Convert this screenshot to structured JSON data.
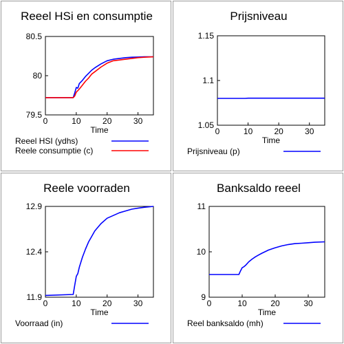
{
  "chart_data": [
    {
      "type": "line",
      "title": "Reeel HSi en consumptie",
      "xlabel": "Time",
      "ylabel": "",
      "xlim": [
        0,
        35
      ],
      "ylim": [
        79.5,
        80.5
      ],
      "xticks": [
        "0",
        "10",
        "20",
        "30"
      ],
      "xtick_values": [
        0,
        10,
        20,
        30
      ],
      "yticks": [
        "79.5",
        "80",
        "80.5"
      ],
      "ytick_values": [
        79.5,
        80,
        80.5
      ],
      "grid": false,
      "legend_position": "bottom",
      "series": [
        {
          "name": "Reeel HSI (ydhs)",
          "color": "#0000ff",
          "x": [
            0,
            9,
            9.5,
            10,
            10.5,
            11,
            12,
            13,
            14,
            15,
            16,
            18,
            20,
            22,
            24,
            26,
            28,
            30,
            32,
            35
          ],
          "y": [
            79.72,
            79.72,
            79.78,
            79.85,
            79.84,
            79.9,
            79.94,
            79.99,
            80.03,
            80.07,
            80.1,
            80.15,
            80.19,
            80.21,
            80.22,
            80.23,
            80.235,
            80.238,
            80.24,
            80.24
          ]
        },
        {
          "name": "Reele consumptie (c)",
          "color": "#ff0000",
          "x": [
            0,
            9,
            9.5,
            10,
            10.5,
            11,
            12,
            13,
            14,
            15,
            16,
            18,
            20,
            22,
            24,
            26,
            28,
            30,
            32,
            35
          ],
          "y": [
            79.72,
            79.72,
            79.74,
            79.79,
            79.81,
            79.83,
            79.88,
            79.93,
            79.97,
            80.02,
            80.05,
            80.11,
            80.16,
            80.19,
            80.2,
            80.21,
            80.22,
            80.23,
            80.235,
            80.24
          ]
        }
      ]
    },
    {
      "type": "line",
      "title": "Prijsniveau",
      "xlabel": "Time",
      "ylabel": "",
      "xlim": [
        0,
        35
      ],
      "ylim": [
        1.05,
        1.15
      ],
      "xticks": [
        "0",
        "10",
        "20",
        "30"
      ],
      "xtick_values": [
        0,
        10,
        20,
        30
      ],
      "yticks": [
        "1.05",
        "1.1",
        "1.15"
      ],
      "ytick_values": [
        1.05,
        1.1,
        1.15
      ],
      "grid": false,
      "legend_position": "bottom",
      "series": [
        {
          "name": "Prijsniveau (p)",
          "color": "#0000ff",
          "x": [
            0,
            9,
            10,
            35
          ],
          "y": [
            1.08,
            1.08,
            1.0802,
            1.0802
          ]
        }
      ]
    },
    {
      "type": "line",
      "title": "Reele voorraden",
      "xlabel": "Time",
      "ylabel": "",
      "xlim": [
        0,
        35
      ],
      "ylim": [
        11.9,
        12.9
      ],
      "xticks": [
        "0",
        "10",
        "20",
        "30"
      ],
      "xtick_values": [
        0,
        10,
        20,
        30
      ],
      "yticks": [
        "11.9",
        "12.4",
        "12.9"
      ],
      "ytick_values": [
        11.9,
        12.4,
        12.9
      ],
      "grid": false,
      "legend_position": "bottom",
      "series": [
        {
          "name": "Voorraad (in)",
          "color": "#0000ff",
          "x": [
            0,
            9,
            9.5,
            10,
            10.5,
            11,
            12,
            13,
            14,
            15,
            16,
            18,
            20,
            22,
            24,
            26,
            28,
            30,
            32,
            35
          ],
          "y": [
            11.92,
            11.93,
            12.03,
            12.13,
            12.16,
            12.23,
            12.34,
            12.43,
            12.51,
            12.57,
            12.63,
            12.71,
            12.77,
            12.8,
            12.83,
            12.85,
            12.87,
            12.88,
            12.89,
            12.9
          ]
        }
      ]
    },
    {
      "type": "line",
      "title": "Banksaldo reeel",
      "xlabel": "Time",
      "ylabel": "",
      "xlim": [
        0,
        35
      ],
      "ylim": [
        9,
        11
      ],
      "xticks": [
        "0",
        "10",
        "20",
        "30"
      ],
      "xtick_values": [
        0,
        10,
        20,
        30
      ],
      "yticks": [
        "9",
        "10",
        "11"
      ],
      "ytick_values": [
        9,
        10,
        11
      ],
      "grid": false,
      "legend_position": "bottom",
      "series": [
        {
          "name": "Reel banksaldo (mh)",
          "color": "#0000ff",
          "x": [
            0,
            9,
            9.5,
            10,
            10.5,
            11,
            12,
            13,
            14,
            15,
            16,
            18,
            20,
            22,
            24,
            26,
            28,
            30,
            32,
            35
          ],
          "y": [
            9.5,
            9.5,
            9.58,
            9.65,
            9.67,
            9.7,
            9.78,
            9.84,
            9.89,
            9.93,
            9.97,
            10.04,
            10.09,
            10.13,
            10.16,
            10.18,
            10.19,
            10.2,
            10.21,
            10.22
          ]
        }
      ]
    }
  ]
}
